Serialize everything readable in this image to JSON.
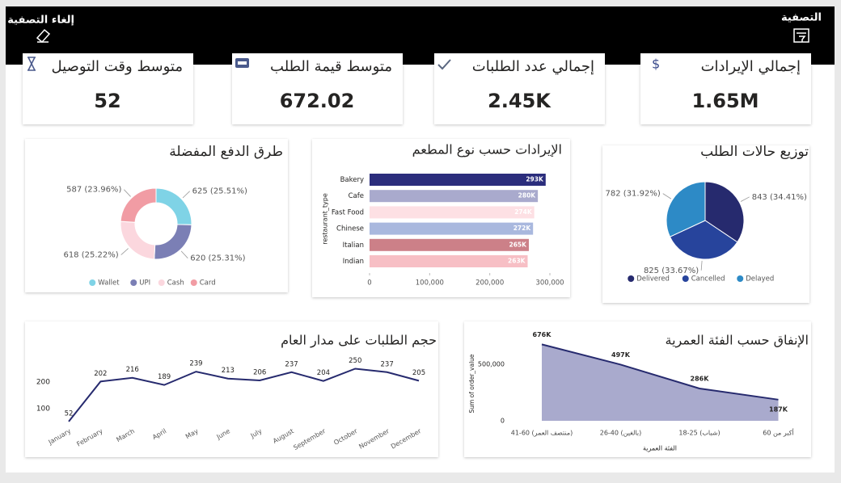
{
  "header": {
    "filter": "التصفية",
    "clear_filter": "إلغاء التصفية"
  },
  "kpis": [
    {
      "label": "إجمالي الإيرادات",
      "value": "1.65M"
    },
    {
      "label": "إجمالي عدد الطلبات",
      "value": "2.45K"
    },
    {
      "label": "متوسط قيمة الطلب",
      "value": "672.02"
    },
    {
      "label": "متوسط وقت التوصيل",
      "value": "52"
    }
  ],
  "chart_data": [
    {
      "type": "pie",
      "title": "توزيع حالات الطلب",
      "categories": [
        "Delivered",
        "Cancelled",
        "Delayed"
      ],
      "values": [
        843,
        825,
        782
      ],
      "value_labels": [
        "843 (34.41%)",
        "825 (33.67%)",
        "782 (31.92%)"
      ],
      "colors": [
        "#262a6e",
        "#27449c",
        "#2d8ac6"
      ]
    },
    {
      "type": "donut",
      "title": "طرق الدفع المفضلة",
      "categories": [
        "Wallet",
        "UPI",
        "Cash",
        "Card"
      ],
      "values": [
        625,
        620,
        618,
        587
      ],
      "value_labels": [
        "625 (25.51%)",
        "620 (25.31%)",
        "618 (25.22%)",
        "587 (23.96%)"
      ],
      "colors": [
        "#7fd3e6",
        "#7b7fb5",
        "#fbd7de",
        "#f19ca4"
      ]
    },
    {
      "type": "hbar",
      "title": "الإيرادات حسب نوع المطعم",
      "y_label": "restaurant_type",
      "categories": [
        "Bakery",
        "Cafe",
        "Fast Food",
        "Chinese",
        "Italian",
        "Indian"
      ],
      "values": [
        293000,
        280000,
        274000,
        272000,
        265000,
        263000
      ],
      "value_labels": [
        "293K",
        "280K",
        "274K",
        "272K",
        "265K",
        "263K"
      ],
      "colors": [
        "#2b2d7c",
        "#a9aacd",
        "#fde0e4",
        "#a9b8de",
        "#cc8088",
        "#f7bfc5"
      ],
      "xlim": [
        0,
        300000
      ],
      "xticks": [
        0,
        {
          "value": 100000,
          "label": "100,000"
        },
        {
          "value": 200000,
          "label": "200,000"
        },
        {
          "value": 300000,
          "label": "300,000"
        }
      ]
    },
    {
      "type": "line",
      "title": "حجم الطلبات على مدار العام",
      "categories": [
        "January",
        "February",
        "March",
        "April",
        "May",
        "June",
        "July",
        "August",
        "September",
        "October",
        "November",
        "December"
      ],
      "values": [
        52,
        202,
        216,
        189,
        239,
        213,
        206,
        237,
        204,
        250,
        237,
        205
      ],
      "color": "#262a6e",
      "ylim": [
        0,
        300
      ],
      "yticks": [
        100,
        200
      ]
    },
    {
      "type": "area",
      "title": "الإنفاق حسب الفئة العمرية",
      "x_label": "الفئة العمرية",
      "y_label": "Sum of order_value",
      "categories": [
        "41-60 (منتصف العمر)",
        "26-40 (بالغين)",
        "18-25 (شباب)",
        "أكبر من 60"
      ],
      "values": [
        676000,
        497000,
        286000,
        187000
      ],
      "value_labels": [
        "676K",
        "497K",
        "286K",
        "187K"
      ],
      "color": "#262a6e",
      "fill": "#a9aacd",
      "ylim": [
        0,
        700000
      ],
      "yticks": [
        0,
        {
          "value": 500000,
          "label": "500,000"
        }
      ]
    }
  ]
}
